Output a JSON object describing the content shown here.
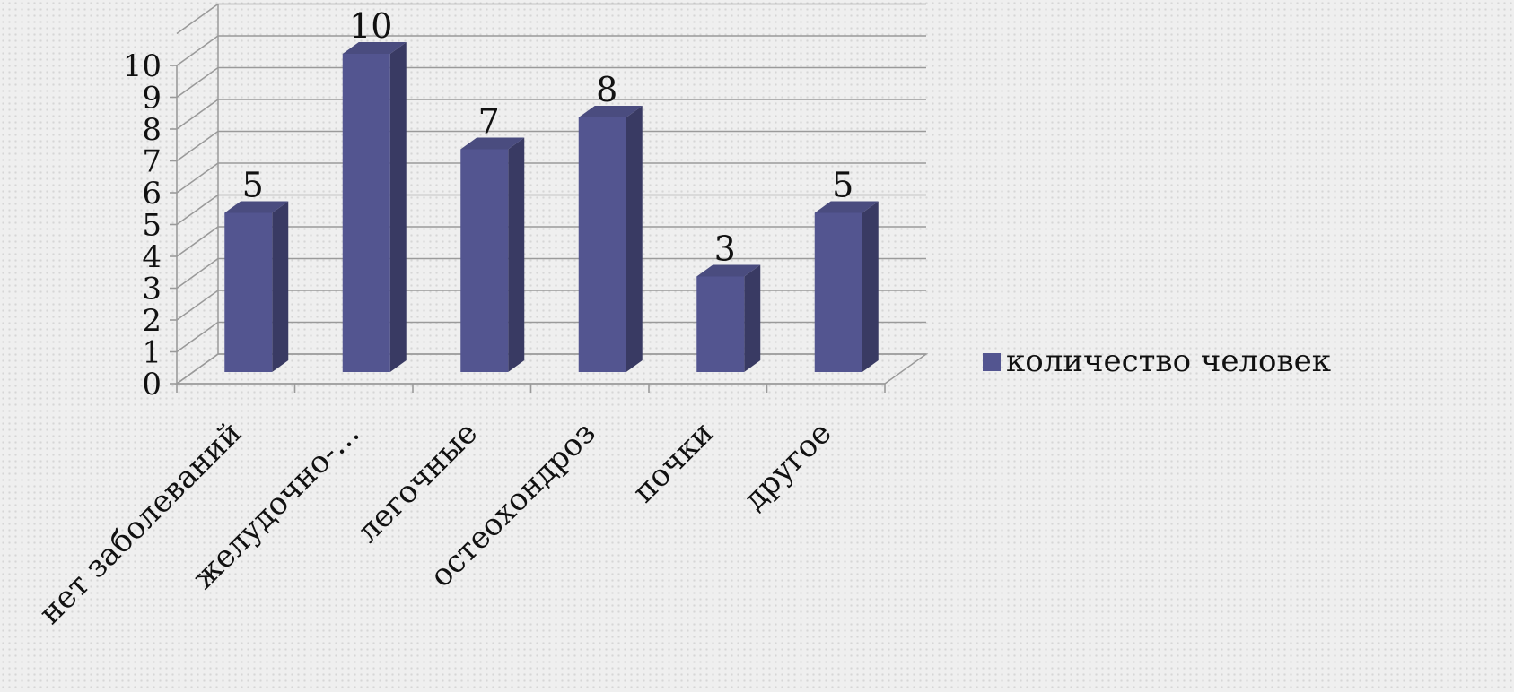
{
  "chart_data": {
    "type": "bar",
    "title": "",
    "xlabel": "",
    "ylabel": "",
    "categories": [
      "нет заболеваний",
      "желудочно-…",
      "легочные",
      "остеохондроз",
      "почки",
      "другое"
    ],
    "series": [
      {
        "name": "количество человек",
        "values": [
          5,
          10,
          7,
          8,
          3,
          5
        ],
        "color": "#535590"
      }
    ],
    "ylim": [
      0,
      10
    ],
    "yticks": [
      0,
      1,
      2,
      3,
      4,
      5,
      6,
      7,
      8,
      9,
      10
    ],
    "data_labels": true,
    "grid": true,
    "three_d": true,
    "legend_position": "right"
  }
}
